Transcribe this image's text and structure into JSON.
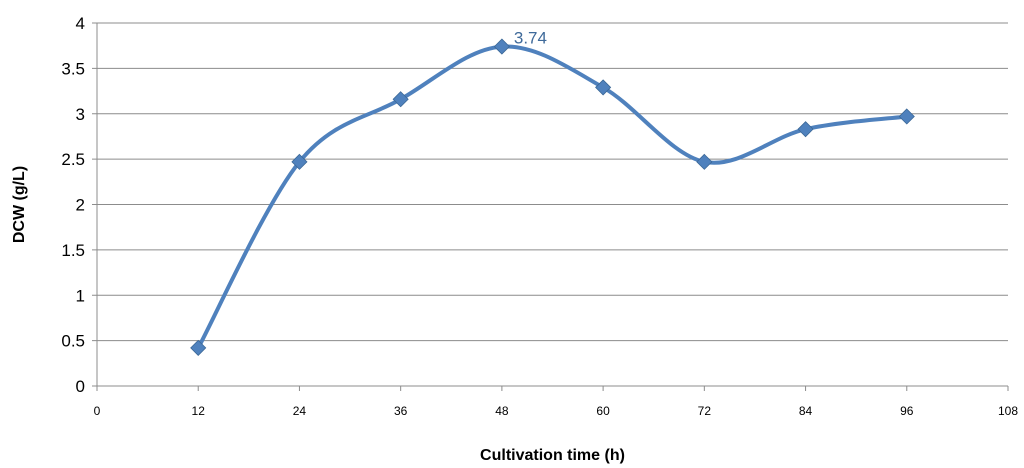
{
  "chart_data": {
    "type": "line",
    "title": "",
    "xlabel": "Cultivation time (h)",
    "ylabel": "DCW (g/L)",
    "xlim": [
      0,
      108
    ],
    "ylim": [
      0,
      4
    ],
    "x_ticks": [
      "0",
      "12",
      "24",
      "36",
      "48",
      "60",
      "72",
      "84",
      "96",
      "108"
    ],
    "y_ticks": [
      "0",
      "0.5",
      "1",
      "1.5",
      "2",
      "2.5",
      "3",
      "3.5",
      "4"
    ],
    "grid": "horizontal",
    "legend": "none",
    "smooth": true,
    "marker": "diamond",
    "color": "#4f81bd",
    "series": [
      {
        "x": [
          12,
          24,
          36,
          48,
          60,
          72,
          84,
          96
        ],
        "values": [
          0.42,
          2.47,
          3.16,
          3.74,
          3.29,
          2.47,
          2.83,
          2.97
        ]
      }
    ],
    "annotations": [
      {
        "x": 48,
        "y": 3.74,
        "text": "3.74"
      }
    ]
  }
}
